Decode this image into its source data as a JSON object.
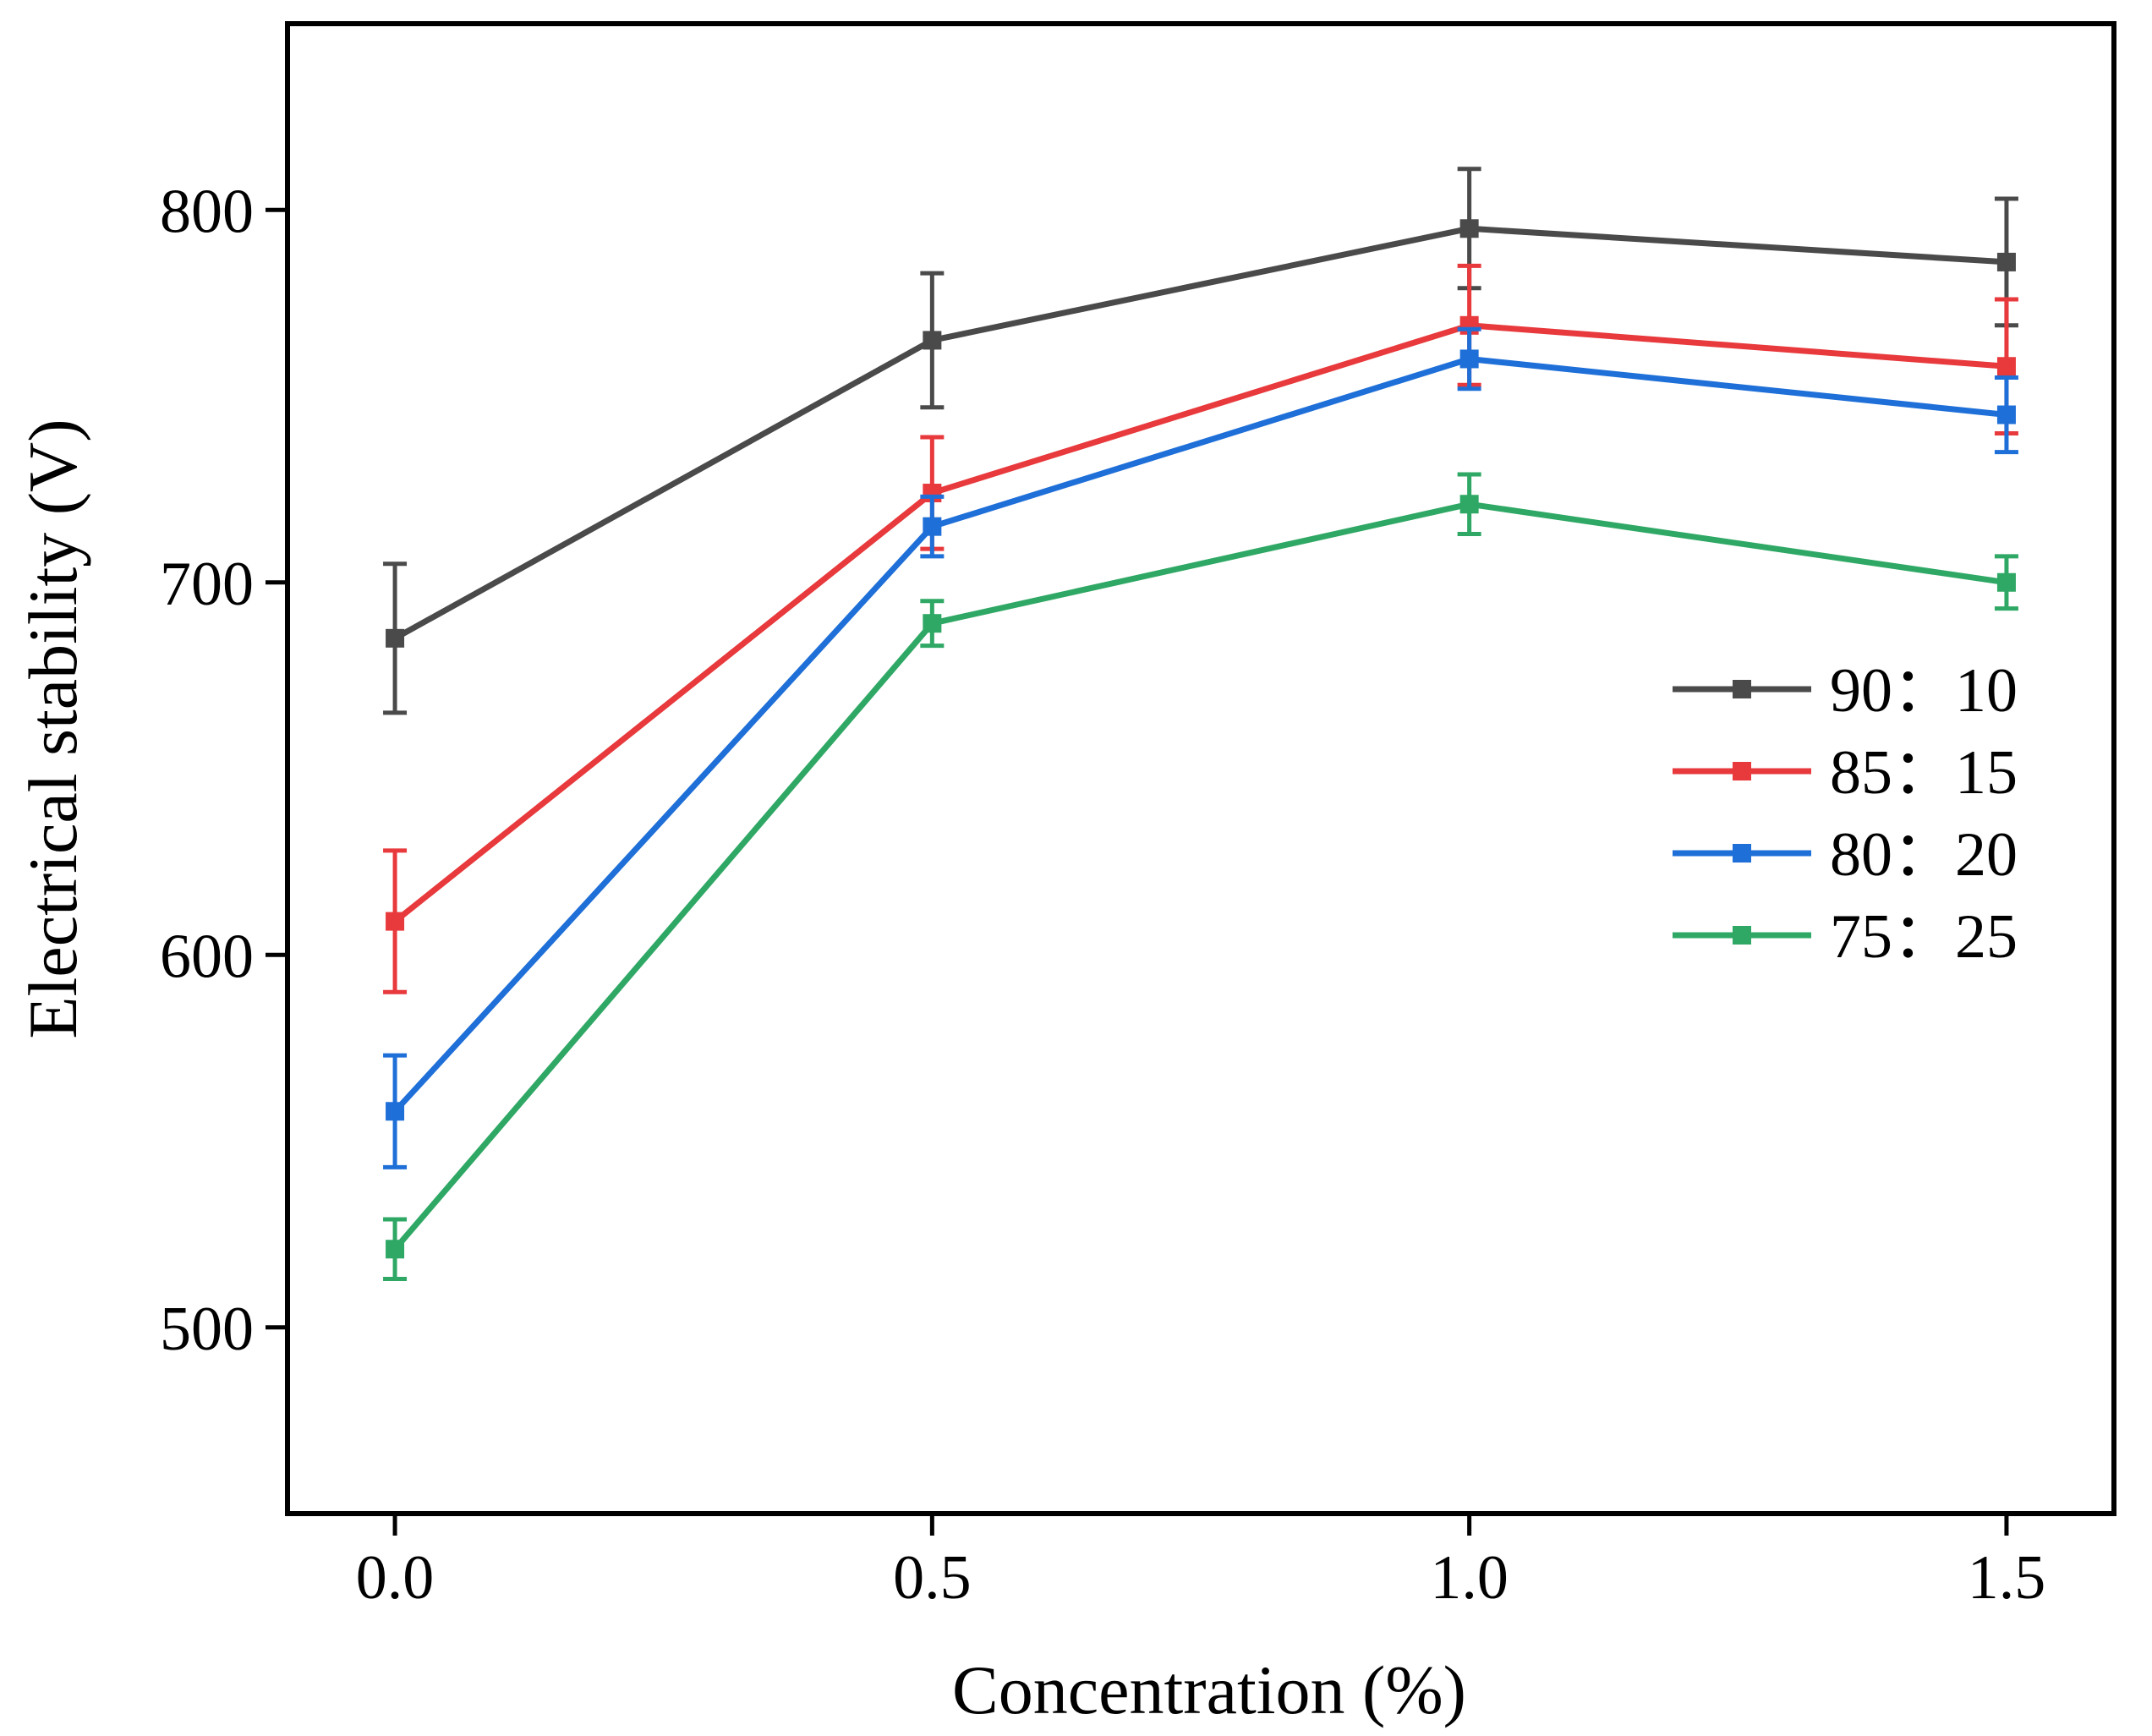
{
  "chart_data": {
    "type": "line",
    "title": "",
    "xlabel": "Concentration (%)",
    "ylabel": "Electrical stability (V)",
    "xlim": [
      -0.1,
      1.6
    ],
    "ylim": [
      450,
      850
    ],
    "x_ticks": [
      0.0,
      0.5,
      1.0,
      1.5
    ],
    "x_tick_labels": [
      "0.0",
      "0.5",
      "1.0",
      "1.5"
    ],
    "y_ticks": [
      500,
      600,
      700,
      800
    ],
    "y_tick_labels": [
      "500",
      "600",
      "700",
      "800"
    ],
    "legend_position": "right",
    "grid": false,
    "x": [
      0.0,
      0.5,
      1.0,
      1.5
    ],
    "series": [
      {
        "name": "90：10",
        "color": "#4a4a4a",
        "values": [
          685,
          765,
          795,
          786
        ],
        "errors": [
          20,
          18,
          16,
          17
        ]
      },
      {
        "name": "85：15",
        "color": "#e8393c",
        "values": [
          609,
          724,
          769,
          758
        ],
        "errors": [
          19,
          15,
          16,
          18
        ]
      },
      {
        "name": "80：20",
        "color": "#1f6fd8",
        "values": [
          558,
          715,
          760,
          745
        ],
        "errors": [
          15,
          8,
          8,
          10
        ]
      },
      {
        "name": "75：25",
        "color": "#2fa865",
        "values": [
          521,
          689,
          721,
          700
        ],
        "errors": [
          8,
          6,
          8,
          7
        ]
      }
    ]
  }
}
